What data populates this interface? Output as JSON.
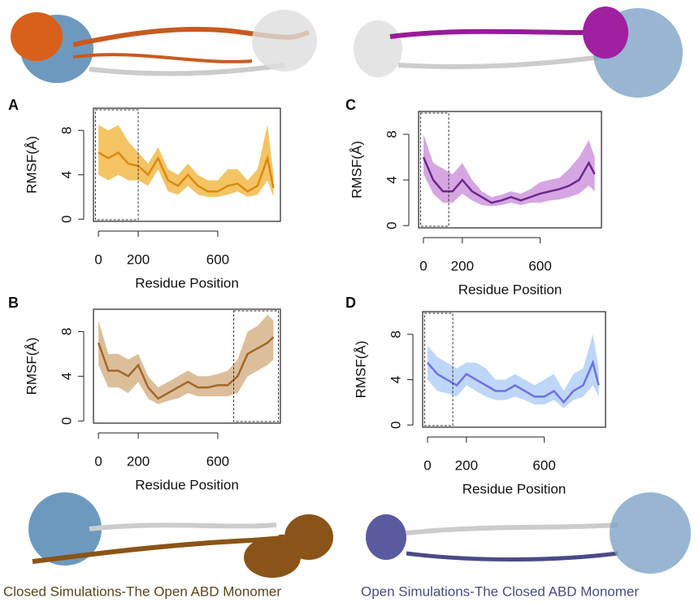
{
  "chart_data": [
    {
      "type": "line",
      "label": "A",
      "xlabel": "Residue Position",
      "ylabel": "RMSF(Å)",
      "color": "#d98a12",
      "band_color": "#f0b030",
      "x": [
        0,
        50,
        100,
        150,
        200,
        250,
        300,
        350,
        400,
        450,
        500,
        550,
        600,
        650,
        700,
        750,
        800,
        850,
        880
      ],
      "values": [
        6,
        5.5,
        6,
        5,
        4.8,
        4,
        5.5,
        3.5,
        3,
        4,
        3,
        2.5,
        2.5,
        3,
        3.2,
        2.5,
        3,
        5.5,
        2.8
      ],
      "upper": [
        8.5,
        8,
        8.5,
        7,
        6,
        5,
        6.5,
        4.5,
        4,
        5,
        4,
        3.5,
        3.5,
        4.5,
        4.5,
        3.5,
        4.5,
        8.5,
        4
      ],
      "lower": [
        4,
        3.5,
        4,
        3.5,
        3.5,
        3,
        4.5,
        2.5,
        2.2,
        3,
        2.2,
        2,
        2,
        2.2,
        2.5,
        2,
        2.2,
        3.5,
        2
      ],
      "xlim": [
        -25,
        915
      ],
      "ylim": [
        -0.2,
        10
      ],
      "xticks": [
        0,
        200,
        600
      ],
      "yticks": [
        0,
        4,
        8
      ],
      "highlight_x": [
        -15,
        200
      ]
    },
    {
      "type": "line",
      "label": "B",
      "xlabel": "Residue Position",
      "ylabel": "RMSF(Å)",
      "color": "#a0682a",
      "band_color": "#d0a878",
      "x": [
        0,
        50,
        100,
        150,
        200,
        250,
        300,
        350,
        400,
        450,
        500,
        550,
        600,
        650,
        700,
        750,
        800,
        850,
        880
      ],
      "values": [
        7,
        4.5,
        4.5,
        4,
        5,
        3,
        2,
        2.5,
        3,
        3.5,
        3,
        3,
        3.2,
        3.2,
        4,
        6,
        6.5,
        7,
        7.5
      ],
      "upper": [
        9,
        6,
        6,
        5.5,
        6,
        4,
        3,
        3.5,
        4,
        4.5,
        4,
        4,
        4.2,
        4.5,
        5.5,
        8,
        8.5,
        9.5,
        9
      ],
      "lower": [
        5,
        3,
        3,
        2.5,
        3.5,
        2,
        1.5,
        1.8,
        2,
        2.5,
        2.2,
        2.2,
        2.2,
        2.2,
        2.5,
        4,
        4.5,
        5,
        5.5
      ],
      "xlim": [
        -25,
        915
      ],
      "ylim": [
        -0.2,
        10
      ],
      "xticks": [
        0,
        200,
        600
      ],
      "yticks": [
        0,
        4,
        8
      ],
      "highlight_x": [
        680,
        905
      ]
    },
    {
      "type": "line",
      "label": "C",
      "xlabel": "Residue Position",
      "ylabel": "RMSF(Å)",
      "color": "#6a2a8a",
      "band_color": "#c888d8",
      "x": [
        0,
        50,
        100,
        150,
        200,
        250,
        300,
        350,
        400,
        450,
        500,
        550,
        600,
        650,
        700,
        750,
        800,
        850,
        880
      ],
      "values": [
        6,
        4,
        3,
        3,
        4,
        3,
        2.5,
        2,
        2.2,
        2.5,
        2.2,
        2.5,
        2.8,
        3,
        3.2,
        3.5,
        4,
        5.5,
        4.5
      ],
      "upper": [
        8,
        5.5,
        5,
        4.5,
        5.5,
        4,
        3,
        2.5,
        2.7,
        3,
        2.8,
        3.2,
        3.8,
        4,
        4.2,
        5,
        6,
        7.5,
        6
      ],
      "lower": [
        4.5,
        2.8,
        2,
        2,
        2.8,
        2.2,
        1.8,
        1.7,
        1.8,
        2,
        1.8,
        2,
        2,
        2.2,
        2.3,
        2.5,
        2.8,
        3.5,
        3
      ],
      "xlim": [
        -25,
        915
      ],
      "ylim": [
        -0.2,
        10
      ],
      "xticks": [
        0,
        200,
        600
      ],
      "yticks": [
        0,
        4,
        8
      ],
      "highlight_x": [
        -15,
        130
      ]
    },
    {
      "type": "line",
      "label": "D",
      "xlabel": "Residue Position",
      "ylabel": "RMSF(Å)",
      "color": "#7070e0",
      "band_color": "#a8c8f4",
      "x": [
        0,
        50,
        100,
        150,
        200,
        250,
        300,
        350,
        400,
        450,
        500,
        550,
        600,
        650,
        700,
        750,
        800,
        850,
        880
      ],
      "values": [
        5.5,
        4.5,
        4,
        3.5,
        4.5,
        4,
        3.5,
        3,
        3,
        3.5,
        3,
        2.5,
        2.5,
        3,
        2,
        3,
        3.5,
        5.5,
        3.5
      ],
      "upper": [
        7,
        6,
        5.5,
        5,
        5.5,
        5.5,
        5,
        4,
        4,
        4.5,
        4,
        3.5,
        4,
        4.5,
        3,
        4.5,
        5,
        8,
        5
      ],
      "lower": [
        4,
        3,
        2.8,
        2.5,
        3.5,
        3,
        2.5,
        2.2,
        2.2,
        2.5,
        2.2,
        1.8,
        1.8,
        2.2,
        1.5,
        2.2,
        2.5,
        3.5,
        2.5
      ],
      "xlim": [
        -25,
        915
      ],
      "ylim": [
        -0.2,
        10
      ],
      "xticks": [
        0,
        200,
        600
      ],
      "yticks": [
        0,
        4,
        8
      ],
      "highlight_x": [
        -15,
        130
      ]
    }
  ],
  "captions": [
    {
      "text": "Closed Simulations-The Open ABD Monomer",
      "color": "#5a4418"
    },
    {
      "text": "Open Simulations-The Closed ABD Monomer",
      "color": "#4a4a88"
    }
  ]
}
